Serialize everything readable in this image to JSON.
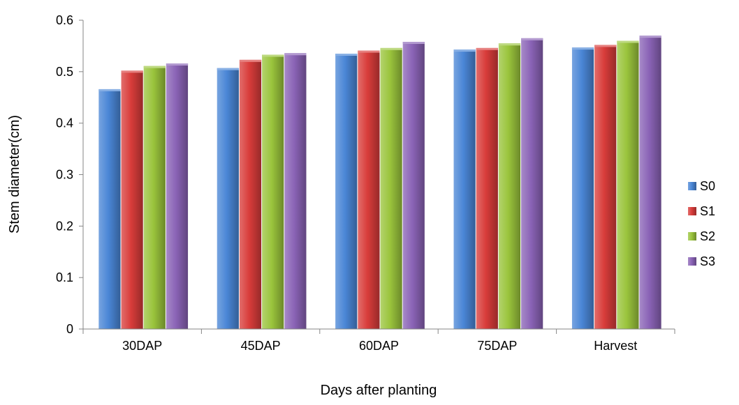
{
  "chart_data": {
    "type": "bar",
    "title": "",
    "xlabel": "Days after planting",
    "ylabel": "Stem diameter(cm)",
    "categories": [
      "30DAP",
      "45DAP",
      "60DAP",
      "75DAP",
      "Harvest"
    ],
    "ylim": [
      0,
      0.6
    ],
    "yticks": [
      "0",
      "0.1",
      "0.2",
      "0.3",
      "0.4",
      "0.5",
      "0.6"
    ],
    "grid": false,
    "legend_position": "right",
    "series": [
      {
        "name": "S0",
        "color": "#4a86d6",
        "values": [
          0.466,
          0.507,
          0.535,
          0.543,
          0.547
        ]
      },
      {
        "name": "S1",
        "color": "#d83c3a",
        "values": [
          0.502,
          0.523,
          0.541,
          0.546,
          0.552
        ]
      },
      {
        "name": "S2",
        "color": "#9ac43c",
        "values": [
          0.511,
          0.533,
          0.546,
          0.555,
          0.56
        ]
      },
      {
        "name": "S3",
        "color": "#8a63b6",
        "values": [
          0.516,
          0.536,
          0.558,
          0.565,
          0.57
        ]
      }
    ]
  }
}
